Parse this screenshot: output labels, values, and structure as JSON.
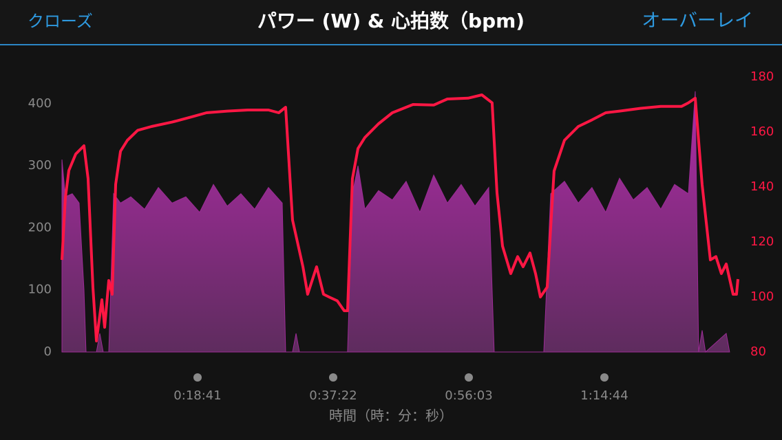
{
  "header": {
    "close": "クローズ",
    "overlay": "オーバーレイ"
  },
  "chart_data": {
    "type": "area",
    "title": "パワー (W) & 心拍数（bpm)",
    "x_label": "時間（時：分：秒）",
    "xlim": [
      0,
      5588
    ],
    "xticks": [
      {
        "value": 1121,
        "label": "0:18:41"
      },
      {
        "value": 2242,
        "label": "0:37:22"
      },
      {
        "value": 3363,
        "label": "0:56:03"
      },
      {
        "value": 4484,
        "label": "1:14:44"
      }
    ],
    "ylim": [
      0,
      443
    ],
    "yticks": [
      0,
      100,
      200,
      300,
      400
    ],
    "y2lim": [
      80,
      180
    ],
    "y2ticks": [
      80,
      100,
      120,
      140,
      160,
      180
    ],
    "series": [
      {
        "type": "area",
        "color": "#9c2b96",
        "x": [
          0,
          28,
          85,
          142,
          182,
          199,
          285,
          313,
          341,
          387,
          427,
          484,
          569,
          683,
          797,
          910,
          1024,
          1138,
          1252,
          1366,
          1479,
          1593,
          1707,
          1821,
          1849,
          1906,
          1935,
          1963,
          2361,
          2401,
          2447,
          2504,
          2617,
          2731,
          2845,
          2959,
          3073,
          3186,
          3300,
          3414,
          3528,
          3573,
          3983,
          4040,
          4154,
          4268,
          4381,
          4495,
          4609,
          4723,
          4837,
          4950,
          5064,
          5178,
          5235,
          5263,
          5292,
          5320,
          5491,
          5519
        ],
        "values": [
          310,
          250,
          255,
          240,
          100,
          0,
          0,
          30,
          0,
          0,
          255,
          240,
          250,
          230,
          265,
          240,
          250,
          225,
          270,
          235,
          255,
          230,
          265,
          240,
          0,
          0,
          30,
          0,
          0,
          255,
          300,
          230,
          260,
          245,
          275,
          225,
          285,
          240,
          270,
          235,
          265,
          0,
          0,
          255,
          275,
          240,
          265,
          225,
          280,
          245,
          265,
          230,
          270,
          255,
          420,
          0,
          35,
          0,
          30,
          0
        ]
      },
      {
        "type": "line",
        "axis": "y2",
        "color": "#ff1744",
        "x": [
          0,
          28,
          57,
          114,
          182,
          216,
          256,
          285,
          330,
          353,
          387,
          415,
          444,
          484,
          541,
          626,
          740,
          910,
          1081,
          1195,
          1366,
          1536,
          1707,
          1792,
          1849,
          1906,
          1992,
          2031,
          2105,
          2162,
          2208,
          2276,
          2333,
          2361,
          2401,
          2447,
          2504,
          2617,
          2731,
          2902,
          3073,
          3186,
          3357,
          3471,
          3556,
          3596,
          3642,
          3710,
          3767,
          3812,
          3869,
          3915,
          3955,
          4011,
          4068,
          4154,
          4268,
          4381,
          4495,
          4609,
          4780,
          4950,
          5121,
          5178,
          5235,
          5292,
          5360,
          5406,
          5451,
          5491,
          5548,
          5576,
          5588
        ],
        "values": [
          113.5,
          136,
          146,
          152,
          155,
          143,
          103.5,
          84,
          99,
          89,
          106,
          101,
          141,
          153,
          157,
          160.6,
          162,
          163.6,
          165.6,
          167,
          167.6,
          168,
          168,
          167,
          169,
          128,
          111,
          101,
          111,
          101,
          100,
          98.6,
          95,
          95,
          143,
          154,
          158,
          163,
          167,
          170,
          169.8,
          172,
          172.3,
          173.5,
          170.6,
          138,
          118.5,
          108.5,
          114.7,
          111,
          116,
          108.5,
          100,
          103.6,
          145.8,
          157,
          162,
          164.4,
          167,
          167.6,
          168.6,
          169.3,
          169.3,
          170.6,
          172.3,
          140.8,
          113.5,
          114.7,
          108.5,
          112,
          101,
          101,
          106.5
        ]
      }
    ]
  }
}
